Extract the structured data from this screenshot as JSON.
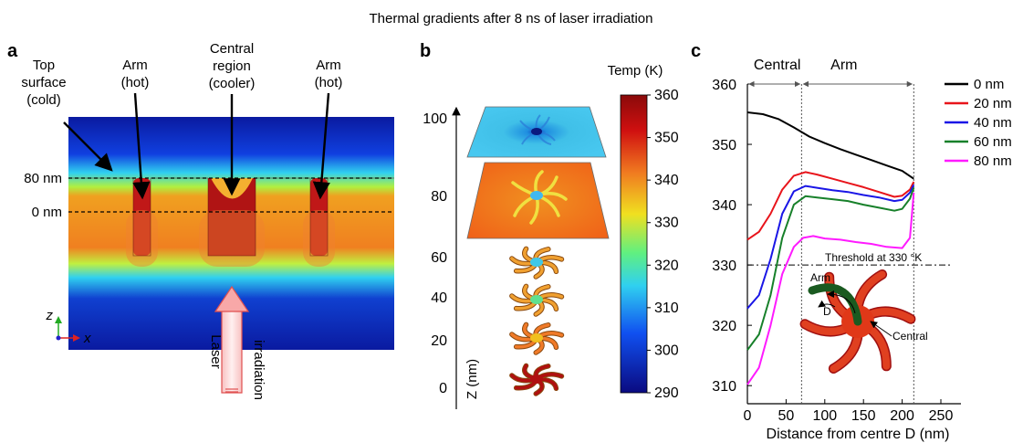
{
  "figure": {
    "title": "Thermal gradients after 8 ns of laser irradiation"
  },
  "panel_a": {
    "label": "a",
    "annotations": {
      "top_surface": [
        "Top",
        "surface",
        "(cold)"
      ],
      "arm_left": [
        "Arm",
        "(hot)"
      ],
      "central": [
        "Central",
        "region",
        "(cooler)"
      ],
      "arm_right": [
        "Arm",
        "(hot)"
      ]
    },
    "level_labels": [
      "80 nm",
      "0 nm"
    ],
    "axis_z": "z",
    "axis_x": "x",
    "laser_text": "Laser",
    "irradiation_text": "irradiation"
  },
  "panel_b": {
    "label": "b",
    "colorbar_title": "Temp (K)",
    "colorbar_ticks": [
      "360",
      "350",
      "340",
      "330",
      "320",
      "310",
      "300",
      "290"
    ],
    "z_ticks": [
      "100",
      "80",
      "60",
      "40",
      "20",
      "0"
    ],
    "z_label": "Z (nm)",
    "colors": {
      "hot": "#b01010",
      "warm": "#e8501a",
      "mid": "#f0c020",
      "cool": "#40c8e8",
      "cold": "#0a1a90"
    }
  },
  "panel_c": {
    "label": "c",
    "region_labels": [
      "Central",
      "Arm"
    ],
    "threshold_label": "Threshold at 330 °K",
    "inset_labels": {
      "arm": "Arm",
      "d": "D",
      "central": "Central"
    }
  },
  "chart_data": {
    "type": "line",
    "title": "",
    "xlabel": "Distance from centre D (nm)",
    "ylabel": "",
    "xlim": [
      0,
      250
    ],
    "ylim": [
      307,
      360
    ],
    "xticks": [
      0,
      50,
      100,
      150,
      200,
      250
    ],
    "yticks": [
      310,
      320,
      330,
      340,
      350,
      360
    ],
    "threshold": 330,
    "region_boundaries": [
      0,
      70,
      215
    ],
    "legend_position": "top-right",
    "series": [
      {
        "name": "0 nm",
        "color": "#000000",
        "x": [
          0,
          20,
          40,
          60,
          80,
          100,
          120,
          140,
          160,
          180,
          200,
          215
        ],
        "y": [
          355.3,
          355.0,
          354.2,
          352.8,
          351.3,
          350.2,
          349.2,
          348.3,
          347.4,
          346.5,
          345.6,
          344.3
        ]
      },
      {
        "name": "20 nm",
        "color": "#e8141b",
        "x": [
          0,
          15,
          30,
          45,
          60,
          75,
          90,
          110,
          130,
          150,
          170,
          190,
          200,
          210,
          215
        ],
        "y": [
          334.2,
          335.5,
          338.5,
          342.5,
          344.8,
          345.4,
          345.0,
          344.3,
          343.6,
          342.9,
          342.1,
          341.3,
          341.5,
          342.5,
          343.8
        ]
      },
      {
        "name": "40 nm",
        "color": "#1a16e6",
        "x": [
          0,
          15,
          30,
          45,
          60,
          75,
          90,
          110,
          130,
          150,
          170,
          190,
          200,
          210,
          215
        ],
        "y": [
          322.8,
          325.0,
          331.0,
          338.5,
          342.2,
          343.1,
          342.8,
          342.4,
          342.1,
          341.6,
          341.2,
          340.6,
          340.8,
          342.0,
          343.3
        ]
      },
      {
        "name": "60 nm",
        "color": "#17802a",
        "x": [
          0,
          15,
          30,
          45,
          60,
          75,
          90,
          110,
          130,
          150,
          170,
          190,
          200,
          210,
          215
        ],
        "y": [
          315.9,
          318.5,
          325.0,
          334.5,
          340.0,
          341.4,
          341.2,
          340.9,
          340.6,
          340.0,
          339.5,
          339.0,
          339.3,
          341.0,
          342.8
        ]
      },
      {
        "name": "80 nm",
        "color": "#ff1aff",
        "x": [
          0,
          15,
          30,
          45,
          60,
          72,
          85,
          100,
          120,
          140,
          160,
          180,
          200,
          210,
          215
        ],
        "y": [
          310.2,
          313.0,
          320.0,
          328.5,
          333.0,
          334.5,
          334.8,
          334.4,
          334.2,
          333.8,
          333.5,
          333.0,
          332.8,
          334.5,
          342.0
        ]
      }
    ]
  }
}
